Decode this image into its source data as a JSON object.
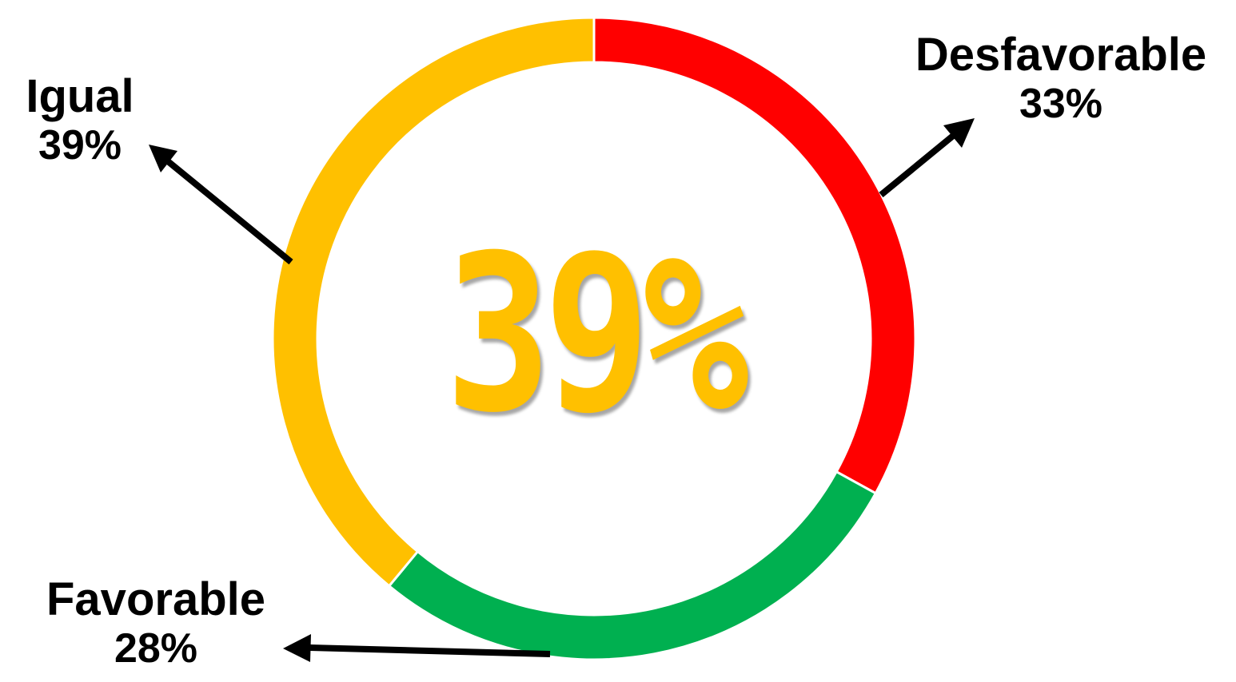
{
  "chart_data": {
    "type": "pie",
    "style": "donut",
    "center_label": "39%",
    "slices": [
      {
        "label": "Desfavorable",
        "value": 33,
        "value_label": "33%",
        "color": "#ff0000"
      },
      {
        "label": "Favorable",
        "value": 28,
        "value_label": "28%",
        "color": "#00b050"
      },
      {
        "label": "Igual",
        "value": 39,
        "value_label": "39%",
        "color": "#ffc000"
      }
    ],
    "start": "top",
    "direction": "clockwise",
    "legend": "none"
  }
}
